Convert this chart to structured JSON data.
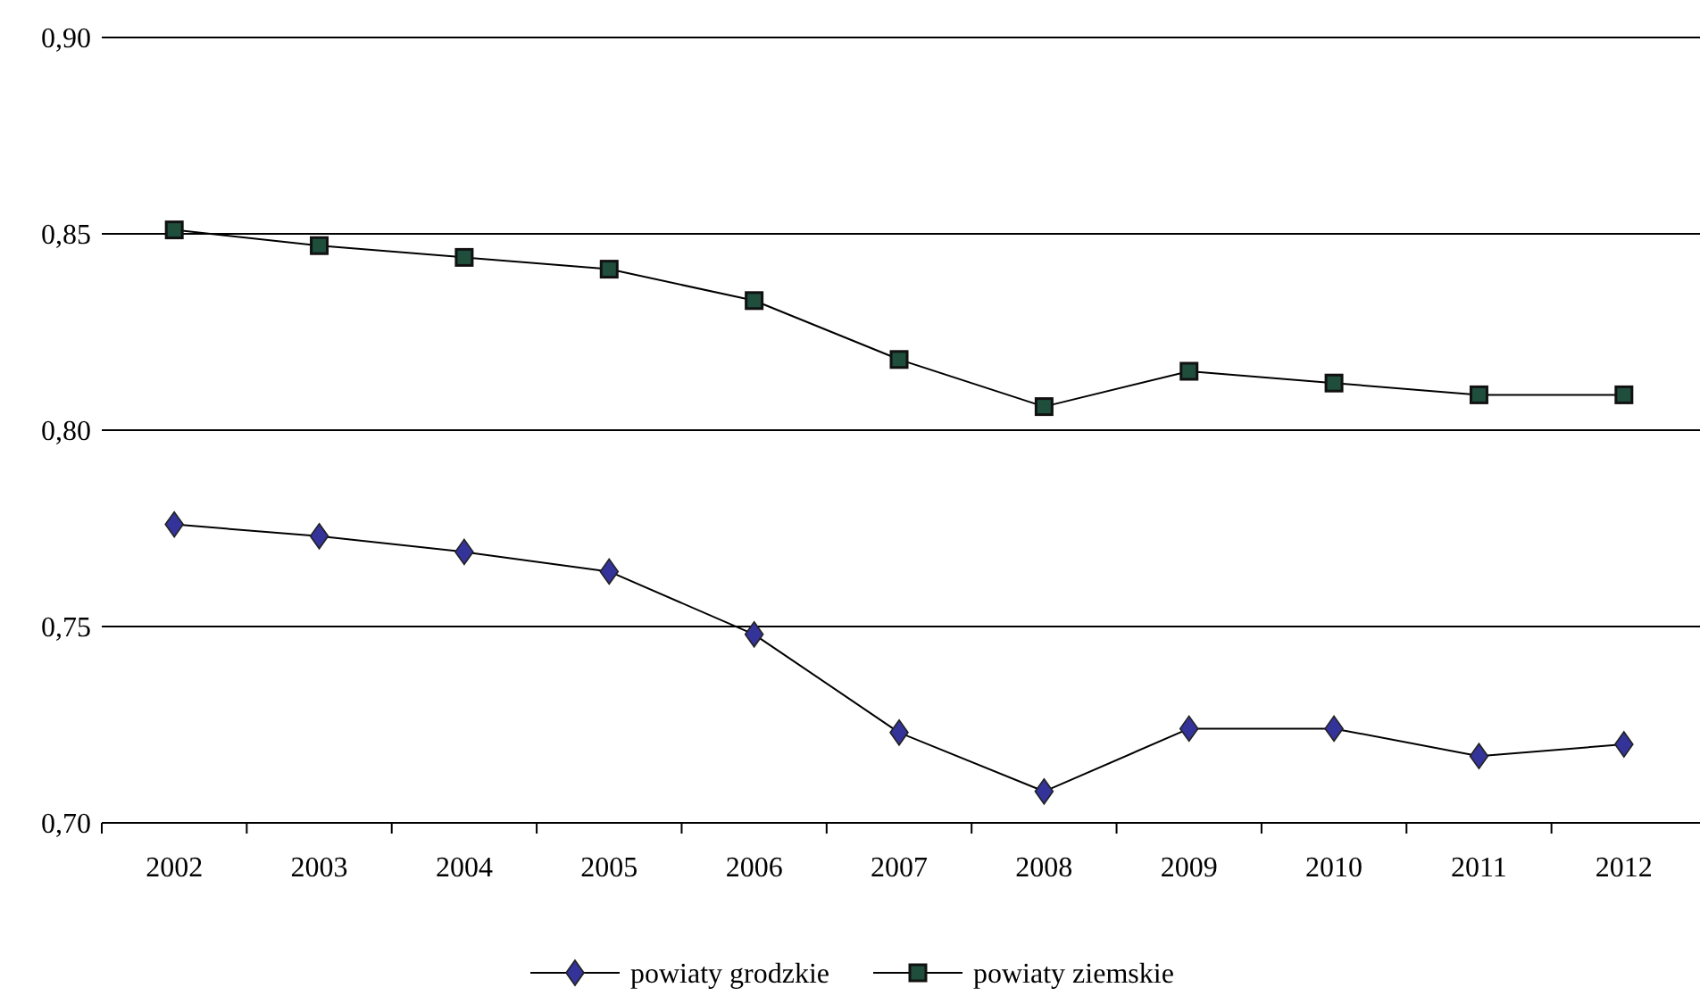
{
  "chart_data": {
    "type": "line",
    "categories": [
      "2002",
      "2003",
      "2004",
      "2005",
      "2006",
      "2007",
      "2008",
      "2009",
      "2010",
      "2011",
      "2012"
    ],
    "series": [
      {
        "name": "powiaty grodzkie",
        "color": "#333399",
        "marker": "diamond",
        "values": [
          0.776,
          0.773,
          0.769,
          0.764,
          0.748,
          0.723,
          0.708,
          0.724,
          0.724,
          0.717,
          0.72
        ]
      },
      {
        "name": "powiaty ziemskie",
        "color": "#1f4e3d",
        "marker": "square",
        "values": [
          0.851,
          0.847,
          0.844,
          0.841,
          0.833,
          0.818,
          0.806,
          0.815,
          0.812,
          0.809,
          0.809
        ]
      }
    ],
    "ylim": [
      0.7,
      0.9
    ],
    "yticks": [
      {
        "value": 0.7,
        "label": "0,70"
      },
      {
        "value": 0.75,
        "label": "0,75"
      },
      {
        "value": 0.8,
        "label": "0,80"
      },
      {
        "value": 0.85,
        "label": "0,85"
      },
      {
        "value": 0.9,
        "label": "0,90"
      }
    ],
    "grid": "y",
    "legend": "bottom",
    "line_style": "solid"
  }
}
